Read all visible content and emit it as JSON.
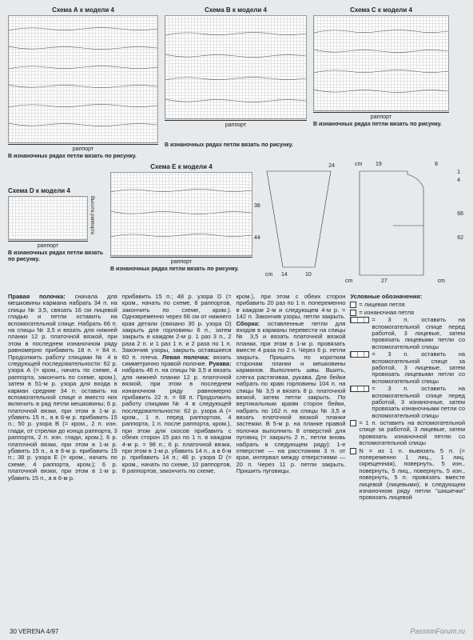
{
  "schemes": {
    "a": {
      "title": "Схема А к модели 4",
      "rapport": "раппорт",
      "note": "В изнаночных рядах петли вязать по рисунку."
    },
    "b": {
      "title": "Схема В к модели 4",
      "rapport": "раппорт",
      "note": "В изнаночных рядах петли вязать по рисунку."
    },
    "c": {
      "title": "Схема С к модели 4",
      "rapport": "раппорт",
      "note": "В изнаночных рядах петли вязать по рисунку."
    },
    "d": {
      "title": "Схема D к модели 4",
      "rapport": "раппорт",
      "height_label": "Высота раппорта",
      "note": "В изнаночных рядах петли вязать по рисунку."
    },
    "e": {
      "title": "Схема Е к модели 4",
      "rapport": "раппорт",
      "note": "В изнаночных рядах петли вязать по рисунку."
    }
  },
  "diagram": {
    "cm": "cm",
    "top_w": "19",
    "top_r": "8",
    "top_h": "1",
    "neck": "4",
    "sleeve_top": "24",
    "sleeve_h1": "38",
    "sleeve_h2": "44",
    "sleeve_bot_l": "14",
    "sleeve_bot_r": "10",
    "body_h": "66",
    "body_h2": "62",
    "body_w": "27"
  },
  "columns": {
    "col1": "Правая полочка: сначала для мешковины кармана набрать 34 п. на спицы № 3,5, связать 16 см лицевой гладью и петли оставить на вспомогательной спице. Набрать 66 п. на спицы № 3,5 и вязать для нижней планки 12 р. платочной вязкой, при этом в последнем изнаночном ряду равномерно прибавить 18 п. = 84 п. Продолжить работу спицами № 4 в следующей последовательности: 62 р. узора А (= кром., начать по схеме, 4 раппорта, закончить по схеме, кром.), затем в 51-м р. узора для входа в карман средние 34 п. оставить на вспомогательной спице и вместо них включить в ряд петли мешковины; 6 р. платочной вязки, при этом в 1-м р. убавить 15 п., а в 6-м р. прибавить 15 п.; 50 р. узора В (= кром., 2 п. изн. глади, от стрелки до конца раппорта, 3 раппорта, 2 п. изн. глади, кром.); 6 р. платочной вязки, при этом в 1-м р. убавить 15 п., а в 6-м р. прибавить 15 п.; 38 р. узора Е (= кром., начать по схеме, 4 раппорта, кром.); 6 р. платочной вязки, при этом в 1-м р. убавить 15 п., а в 6-м р.",
    "col2": "прибавить 15 п.; 48 р. узора D (= кром., начать по схеме, 8 раппортов, закончить по схеме, кром.). Одновременно через 66 см от нижнего края детали (связано 30 р. узора D) закрыть для горловины 6 п., затем закрыть в каждом 2-м р. 1 раз 3 п., 2 раза 2 п. и 1 раз 1 п. и 2 раза по 1 п. Закончив узоры, закрыть оставшиеся 60 п. плеча. Левая полочка: вязать симметрично правой полочке. Рукава: набрать 46 п. на спицы № 3,5 и вязать для нижней планки 12 р. платочной вязкой, при этом в последнем изнаночном ряду равномерно прибавить 22 п. = 68 п. Продолжить работу спицами № 4 в следующей последовательности: 62 р. узора А (= кром., 1 п. перед раппортом, 4 раппорта, 1 п. после раппорта, кром.), при этом для скосов прибавить с обеих сторон 15 раз по 1 п. в каждом 4-м р. = 98 п.; 6 р. платочной вязки, при этом в 1-м р. убавить 14 п., а в 6-м р. прибавить 14 п.; 46 р. узора D (= кром., начать по схеме, 10 раппортов, 8 раппортов, закончить по схеме,",
    "col3": "кром.), при этом с обеих сторон прибавить 20 раз по 1 п. попеременно в каждом 2-м и следующем 4-м р. = 142 п. Закончив узоры, петли закрыть. Сборка: оставленные петли для входов в карманы перевести на спицы № 3,5 и вязать платочной вязкой планки, при этом в 1-м р. провязать вместе 4 раза по 2 п. Через 6 р. петли закрыть. Пришить по коротким сторонам планки и мешковины карманов. Выполнить швы. Вшить, слегка растягивая, рукава. Для бейки набрать по краю горловины 104 п. на спицы № 3,5 и вязать 8 р. платочной вязкой, затем петли закрыть. По вертикальным краям сторон бейки, набрать по 162 п. на спицы № 3,5 и вязать платочной вязкой планки застежки. В 5-м р. на планке правой полочки выполнить 8 отверстий для пуговиц (= закрыть 2 п., петли вновь набрать в следующем ряду): 1-е отверстие — на расстоянии 3 п. от края, интервал между отверстиями — 20 п. Через 11 р. петли закрыть. Пришить пуговицы."
  },
  "legend": {
    "title": "Условные обозначения:",
    "items": [
      {
        "sym": "small",
        "text": "= лицевая петля"
      },
      {
        "sym": "small",
        "text": "= изнаночная петля"
      },
      {
        "sym": "three",
        "text": "= 3 п. оставить на вспомогательной спице перед работой, 3 лицевые, затем провязать лицевыми петли со вспомогательной спицы"
      },
      {
        "sym": "three",
        "text": "= 3 п. оставить на вспомогательной спице за работой, 3 лицевые, затем провязать лицевыми петли со вспомогательной спицы"
      },
      {
        "sym": "three",
        "text": "= 3 п. оставить на вспомогательной спице перед работой, 3 изнаночные, затем провязать изнаночными петли со вспомогательной спицы"
      },
      {
        "sym": "small",
        "text": "= 1 п. оставить на вспомогательной спице за работой, 3 лицевые, затем провязать изнаночной петлю со вспомогательной спицы"
      },
      {
        "sym": "small",
        "text": "N = из 1 п. вывязать 5 п. (= попеременно 1 лиц., 1 лиц. скрещенная), повернуть, 5 изн., повернуть, 5 лиц., повернуть, 5 изн., повернуть, 5 п. провязать вместе лицевой (лицевыми); в следующем изнаночном ряду петли \"шишечки\" провязать лицевой"
      }
    ]
  },
  "footer": "30 VERENA 4/97",
  "watermark": "PassionForum.ru"
}
